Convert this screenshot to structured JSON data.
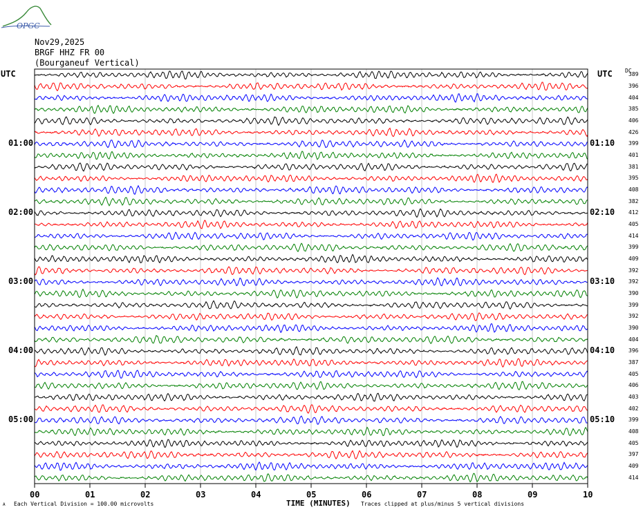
{
  "header": {
    "logo_text": "OPGC",
    "date": "Nov29,2025",
    "station": "BRGF HHZ FR 00",
    "location": "(Bourganeuf Vertical)"
  },
  "left_axis_label": "UTC",
  "right_axis_label": "UTC",
  "dc_label": "DC",
  "footer": {
    "scale_mark": "A",
    "scale_note": "Each Vertical Division = 100.00 microvolts",
    "clip_note": "Traces clipped at plus/minus 5 vertical divisions"
  },
  "chart_data": {
    "type": "line",
    "title": "",
    "xlabel": "TIME (MINUTES)",
    "ylabel": "UTC",
    "xlim": [
      0,
      10
    ],
    "x_ticks": [
      "00",
      "01",
      "02",
      "03",
      "04",
      "05",
      "06",
      "07",
      "08",
      "09",
      "10"
    ],
    "trace_count": 36,
    "trace_colors": [
      "#000000",
      "#ff0000",
      "#0000ff",
      "#008000"
    ],
    "left_time_labels": [
      {
        "row": 6,
        "label": "01:00"
      },
      {
        "row": 12,
        "label": "02:00"
      },
      {
        "row": 18,
        "label": "03:00"
      },
      {
        "row": 24,
        "label": "04:00"
      },
      {
        "row": 30,
        "label": "05:00"
      }
    ],
    "right_time_labels": [
      {
        "row": 6,
        "label": "01:10"
      },
      {
        "row": 12,
        "label": "02:10"
      },
      {
        "row": 18,
        "label": "03:10"
      },
      {
        "row": 24,
        "label": "04:10"
      },
      {
        "row": 30,
        "label": "05:10"
      }
    ],
    "dc_offsets": [
      389,
      396,
      404,
      385,
      406,
      426,
      399,
      401,
      381,
      395,
      408,
      382,
      412,
      405,
      414,
      399,
      409,
      392,
      392,
      390,
      399,
      392,
      390,
      404,
      396,
      387,
      405,
      406,
      403,
      402,
      399,
      408,
      405,
      397,
      409,
      414
    ],
    "grid": "vertical",
    "legend": "none"
  }
}
